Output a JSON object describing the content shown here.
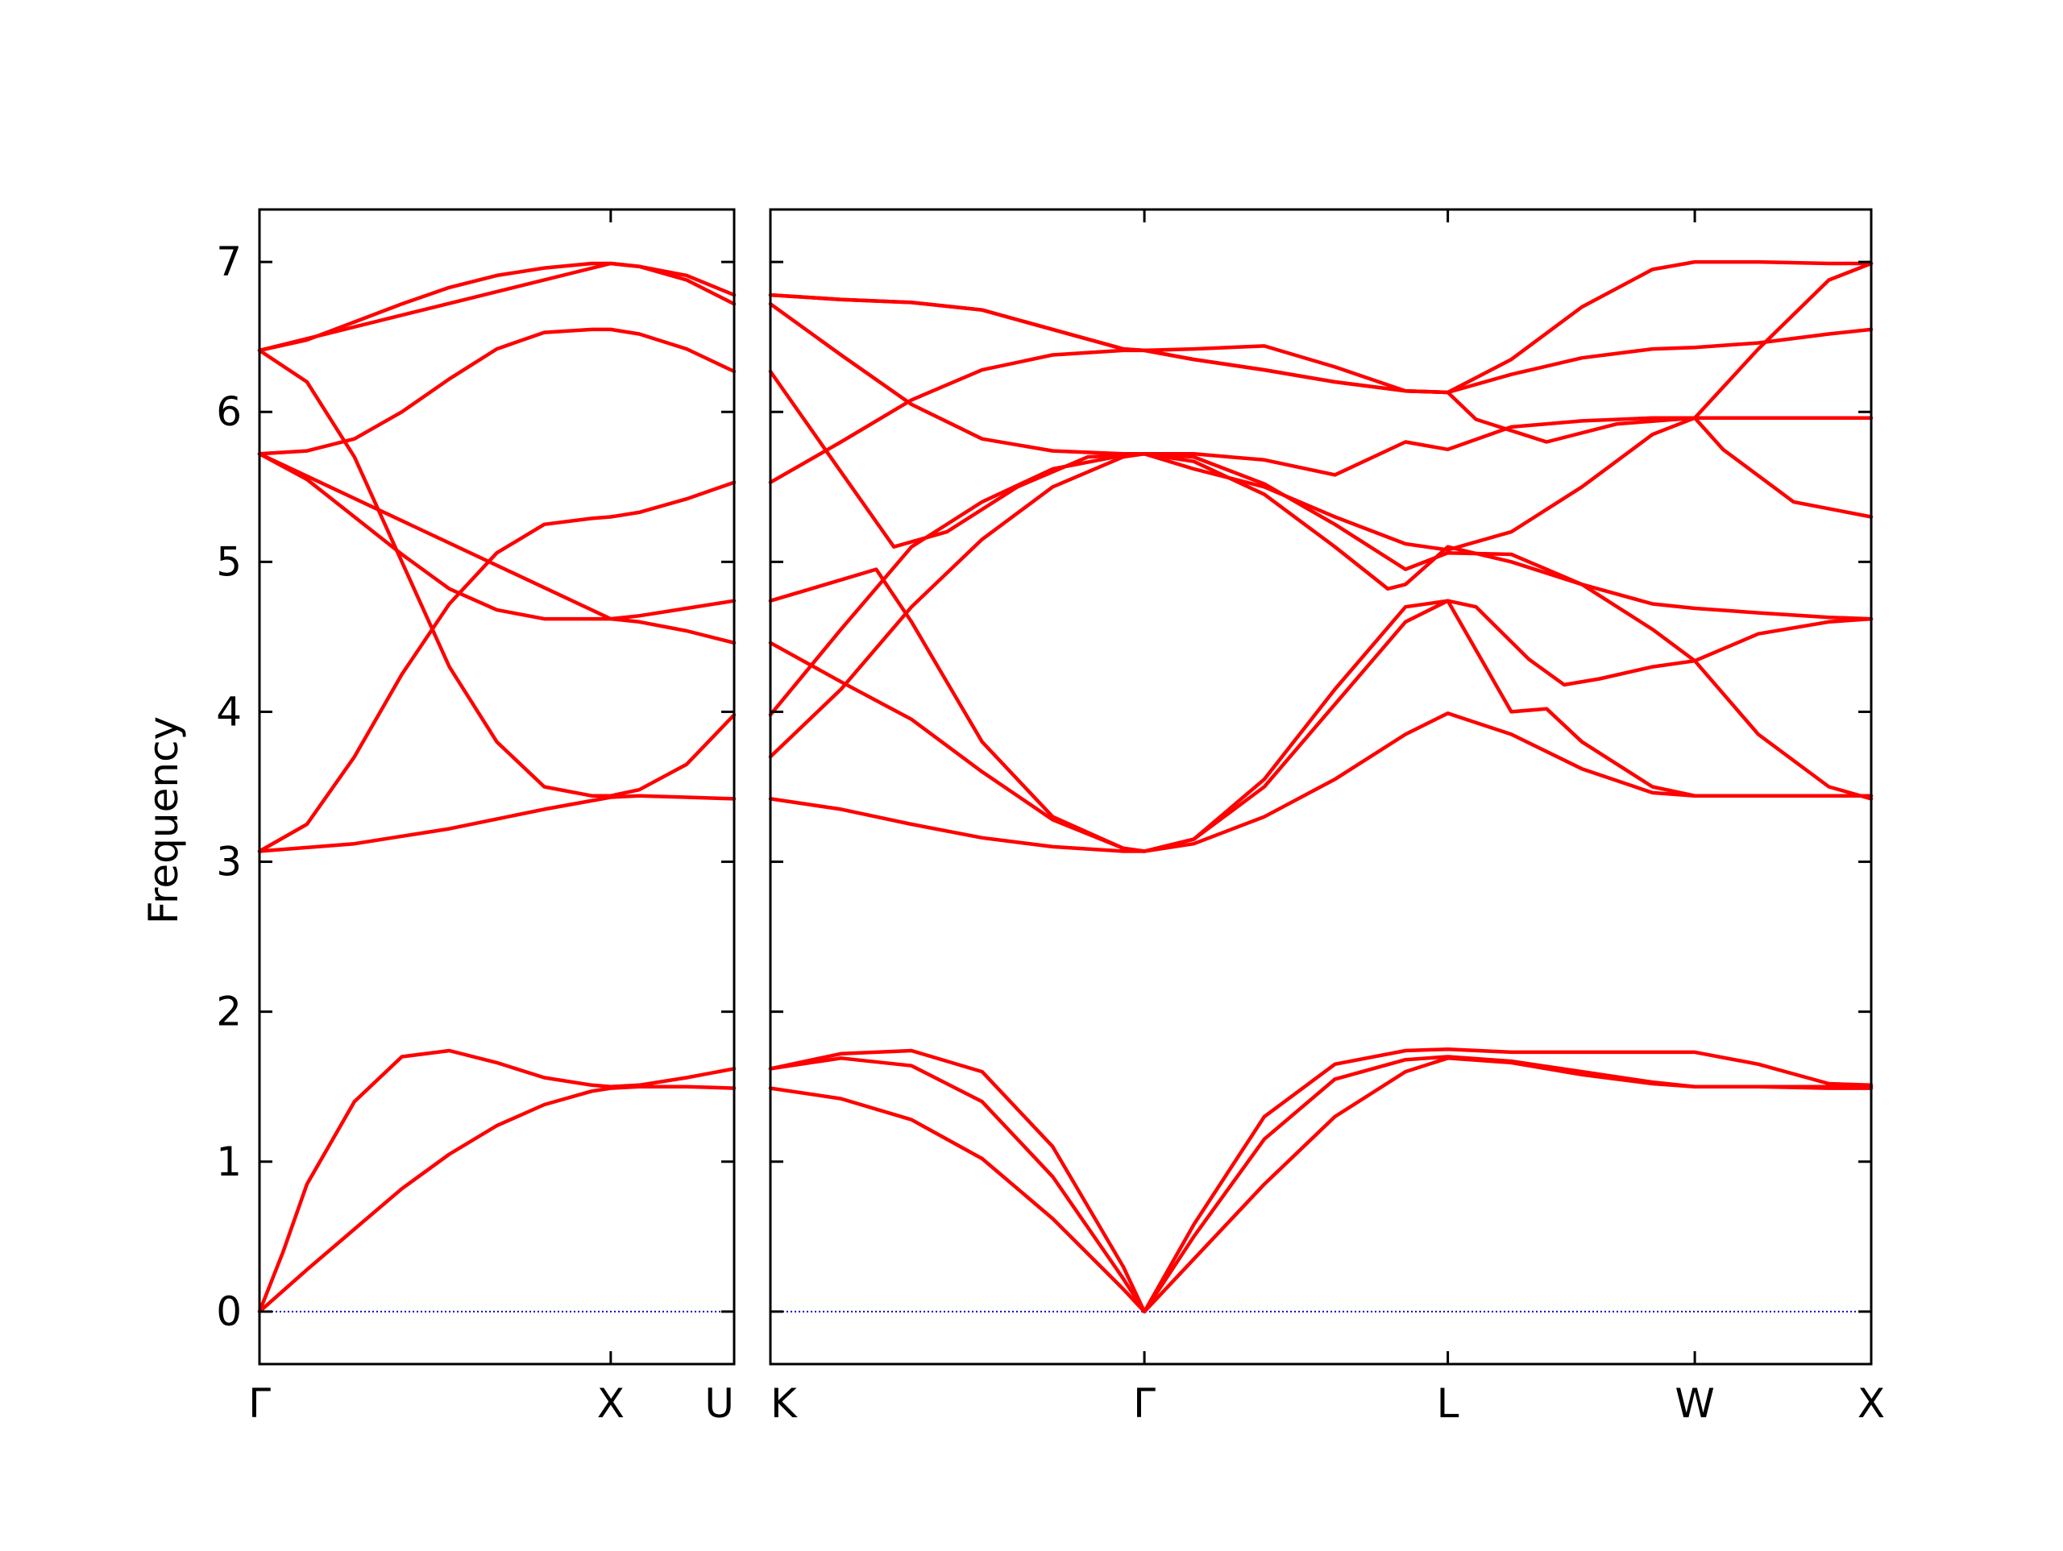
{
  "chart_data": {
    "type": "line",
    "title": "",
    "xlabel": "",
    "ylabel": "Frequency",
    "ylim": [
      -0.35,
      7.35
    ],
    "yticks": [
      0,
      1,
      2,
      3,
      4,
      5,
      6,
      7
    ],
    "grid": false,
    "legend": "none",
    "line_color": "#ff0000",
    "zero_line_color": "#0000cc",
    "panels": [
      {
        "ticks": [
          {
            "label": "Γ",
            "x": 0.0
          },
          {
            "label": "X",
            "x": 0.74
          },
          {
            "label": "U",
            "x": 1.0
          }
        ],
        "xlim": [
          0,
          1
        ],
        "series": [
          {
            "x": [
              0,
              0.1,
              0.2,
              0.3,
              0.4,
              0.5,
              0.6,
              0.7,
              0.74,
              0.8,
              0.9,
              1.0
            ],
            "values": [
              0.0,
              0.28,
              0.55,
              0.82,
              1.05,
              1.24,
              1.38,
              1.47,
              1.49,
              1.5,
              1.5,
              1.49
            ]
          },
          {
            "x": [
              0,
              0.05,
              0.1,
              0.2,
              0.3,
              0.4,
              0.5,
              0.6,
              0.7,
              0.74,
              0.8,
              0.9,
              1.0
            ],
            "values": [
              0.0,
              0.4,
              0.85,
              1.4,
              1.7,
              1.74,
              1.66,
              1.56,
              1.51,
              1.5,
              1.51,
              1.56,
              1.62
            ]
          },
          {
            "x": [
              0,
              0.2,
              0.4,
              0.6,
              0.74,
              0.8,
              0.9,
              1.0
            ],
            "values": [
              3.07,
              3.12,
              3.22,
              3.35,
              3.43,
              3.44,
              3.43,
              3.42
            ]
          },
          {
            "x": [
              0,
              0.1,
              0.2,
              0.3,
              0.4,
              0.5,
              0.6,
              0.7,
              0.74,
              0.8,
              0.9,
              1.0
            ],
            "values": [
              3.07,
              3.25,
              3.7,
              4.25,
              4.72,
              5.06,
              5.25,
              5.29,
              5.3,
              5.33,
              5.42,
              5.53
            ]
          },
          {
            "x": [
              0,
              0.1,
              0.2,
              0.3,
              0.4,
              0.5,
              0.6,
              0.7,
              0.74,
              0.8,
              0.9,
              1.0
            ],
            "values": [
              6.41,
              6.2,
              5.7,
              5.0,
              4.3,
              3.8,
              3.5,
              3.44,
              3.44,
              3.48,
              3.65,
              3.98
            ]
          },
          {
            "x": [
              0,
              0.1,
              0.2,
              0.3,
              0.4,
              0.5,
              0.6,
              0.74,
              0.8,
              0.9,
              1.0
            ],
            "values": [
              5.72,
              5.55,
              5.3,
              5.05,
              4.82,
              4.68,
              4.62,
              4.62,
              4.6,
              4.54,
              4.46
            ]
          },
          {
            "x": [
              0,
              0.74,
              0.8,
              0.9,
              1.0
            ],
            "values": [
              5.72,
              4.62,
              4.64,
              4.69,
              4.74
            ]
          },
          {
            "x": [
              0,
              0.1,
              0.2,
              0.3,
              0.4,
              0.5,
              0.6,
              0.7,
              0.74,
              0.8,
              0.9,
              1.0
            ],
            "values": [
              5.72,
              5.74,
              5.82,
              6.0,
              6.22,
              6.42,
              6.53,
              6.55,
              6.55,
              6.52,
              6.42,
              6.27
            ]
          },
          {
            "x": [
              0,
              0.1,
              0.2,
              0.3,
              0.4,
              0.5,
              0.6,
              0.7,
              0.74,
              0.8,
              0.9,
              1.0
            ],
            "values": [
              6.41,
              6.48,
              6.6,
              6.72,
              6.83,
              6.91,
              6.96,
              6.99,
              6.99,
              6.97,
              6.88,
              6.72
            ]
          },
          {
            "x": [
              0,
              0.74,
              0.8,
              0.9,
              1.0
            ],
            "values": [
              6.41,
              6.99,
              6.97,
              6.91,
              6.78
            ]
          }
        ]
      },
      {
        "ticks": [
          {
            "label": "K",
            "x": 0.0
          },
          {
            "label": "Γ",
            "x": 1.06
          },
          {
            "label": "L",
            "x": 1.92
          },
          {
            "label": "W",
            "x": 2.62
          },
          {
            "label": "X",
            "x": 3.12
          }
        ],
        "xlim": [
          0,
          3.12
        ],
        "series": [
          {
            "x": [
              0,
              0.2,
              0.4,
              0.6,
              0.8,
              1.0,
              1.06,
              1.2,
              1.4,
              1.6,
              1.8,
              1.92,
              2.1,
              2.3,
              2.5,
              2.62,
              2.8,
              3.0,
              3.12
            ],
            "values": [
              1.49,
              1.42,
              1.28,
              1.02,
              0.62,
              0.15,
              0.0,
              0.35,
              0.85,
              1.3,
              1.6,
              1.69,
              1.66,
              1.58,
              1.52,
              1.5,
              1.5,
              1.49,
              1.49
            ]
          },
          {
            "x": [
              0,
              0.2,
              0.4,
              0.6,
              0.8,
              1.0,
              1.06,
              1.2,
              1.4,
              1.6,
              1.8,
              1.92,
              2.1,
              2.3,
              2.5,
              2.62,
              2.8,
              3.0,
              3.12
            ],
            "values": [
              1.62,
              1.69,
              1.64,
              1.4,
              0.9,
              0.22,
              0.0,
              0.5,
              1.15,
              1.55,
              1.68,
              1.7,
              1.67,
              1.6,
              1.53,
              1.5,
              1.5,
              1.5,
              1.5
            ]
          },
          {
            "x": [
              0,
              0.2,
              0.4,
              0.6,
              0.8,
              1.0,
              1.06,
              1.2,
              1.4,
              1.6,
              1.8,
              1.92,
              2.1,
              2.3,
              2.5,
              2.62,
              2.8,
              3.0,
              3.12
            ],
            "values": [
              1.62,
              1.72,
              1.74,
              1.6,
              1.1,
              0.3,
              0.0,
              0.58,
              1.3,
              1.65,
              1.74,
              1.75,
              1.73,
              1.73,
              1.73,
              1.73,
              1.65,
              1.52,
              1.51
            ]
          },
          {
            "x": [
              0,
              0.2,
              0.4,
              0.6,
              0.8,
              1.0,
              1.06,
              1.2,
              1.4,
              1.6,
              1.8,
              1.92,
              2.1,
              2.3,
              2.5,
              2.62,
              2.8,
              3.0,
              3.12
            ],
            "values": [
              3.42,
              3.35,
              3.25,
              3.16,
              3.1,
              3.07,
              3.07,
              3.12,
              3.3,
              3.55,
              3.85,
              3.99,
              3.85,
              3.62,
              3.46,
              3.44,
              3.44,
              3.44,
              3.44
            ]
          },
          {
            "x": [
              0,
              0.2,
              0.4,
              0.6,
              0.8,
              1.0,
              1.06,
              1.2,
              1.4,
              1.6,
              1.8,
              1.92,
              2.0,
              2.15,
              2.25,
              2.35,
              2.5,
              2.62,
              2.8,
              3.0,
              3.12
            ],
            "values": [
              4.46,
              4.2,
              3.95,
              3.6,
              3.28,
              3.09,
              3.07,
              3.15,
              3.5,
              4.05,
              4.6,
              4.74,
              4.7,
              4.35,
              4.18,
              4.22,
              4.3,
              4.34,
              4.52,
              4.6,
              4.62
            ]
          },
          {
            "x": [
              0,
              0.2,
              0.3,
              0.4,
              0.6,
              0.8,
              1.0,
              1.06,
              1.2,
              1.4,
              1.6,
              1.8,
              1.92,
              2.1,
              2.2,
              2.3,
              2.5,
              2.62,
              2.8,
              3.0,
              3.12
            ],
            "values": [
              4.74,
              4.88,
              4.95,
              4.6,
              3.8,
              3.3,
              3.09,
              3.07,
              3.15,
              3.55,
              4.15,
              4.7,
              4.74,
              4.0,
              4.02,
              3.8,
              3.5,
              3.44,
              3.44,
              3.44,
              3.44
            ]
          },
          {
            "x": [
              0,
              0.2,
              0.4,
              0.6,
              0.8,
              1.0,
              1.06,
              1.2,
              1.4,
              1.6,
              1.8,
              1.92,
              2.1,
              2.3,
              2.5,
              2.62,
              2.8,
              3.0,
              3.12
            ],
            "values": [
              3.7,
              4.15,
              4.7,
              5.15,
              5.5,
              5.7,
              5.72,
              5.7,
              5.52,
              5.25,
              4.95,
              5.06,
              5.05,
              4.85,
              4.55,
              4.34,
              3.85,
              3.5,
              3.42
            ]
          },
          {
            "x": [
              0,
              0.2,
              0.4,
              0.6,
              0.8,
              1.0,
              1.06,
              1.2,
              1.4,
              1.6,
              1.75,
              1.8,
              1.92,
              2.1,
              2.3,
              2.5,
              2.62,
              2.8,
              3.0,
              3.12
            ],
            "values": [
              3.98,
              4.55,
              5.1,
              5.4,
              5.62,
              5.71,
              5.72,
              5.67,
              5.45,
              5.1,
              4.82,
              4.85,
              5.1,
              5.0,
              4.85,
              4.72,
              4.69,
              4.66,
              4.63,
              4.62
            ]
          },
          {
            "x": [
              0,
              0.2,
              0.35,
              0.5,
              0.7,
              0.9,
              1.06,
              1.2,
              1.4,
              1.6,
              1.8,
              1.92,
              2.1,
              2.3,
              2.5,
              2.62,
              2.7,
              2.9,
              3.12
            ],
            "values": [
              6.27,
              5.6,
              5.1,
              5.2,
              5.5,
              5.7,
              5.72,
              5.62,
              5.5,
              5.3,
              5.12,
              5.08,
              5.2,
              5.5,
              5.85,
              5.96,
              5.75,
              5.4,
              5.3
            ]
          },
          {
            "x": [
              0,
              0.2,
              0.4,
              0.6,
              0.8,
              1.0,
              1.06,
              1.2,
              1.4,
              1.6,
              1.8,
              1.92,
              2.0,
              2.2,
              2.4,
              2.62,
              3.12
            ],
            "values": [
              5.53,
              5.8,
              6.08,
              6.28,
              6.38,
              6.41,
              6.41,
              6.35,
              6.28,
              6.2,
              6.14,
              6.13,
              5.95,
              5.8,
              5.92,
              5.96,
              5.96
            ]
          },
          {
            "x": [
              0,
              0.2,
              0.4,
              0.6,
              0.8,
              1.0,
              1.06,
              1.2,
              1.4,
              1.6,
              1.8,
              1.92,
              2.1,
              2.3,
              2.5,
              2.62,
              2.8,
              3.0,
              3.12
            ],
            "values": [
              6.78,
              6.75,
              6.73,
              6.68,
              6.55,
              6.42,
              6.41,
              6.35,
              6.28,
              6.2,
              6.14,
              6.13,
              6.25,
              6.36,
              6.42,
              6.43,
              6.46,
              6.52,
              6.55
            ]
          },
          {
            "x": [
              0,
              0.2,
              0.4,
              0.6,
              0.8,
              1.0,
              1.06,
              1.2,
              1.4,
              1.6,
              1.8,
              1.92,
              2.1,
              2.3,
              2.5,
              2.62,
              2.8,
              3.0,
              3.12
            ],
            "values": [
              6.72,
              6.38,
              6.05,
              5.82,
              5.74,
              5.72,
              5.72,
              5.72,
              5.68,
              5.58,
              5.8,
              5.75,
              5.9,
              5.94,
              5.96,
              5.96,
              6.42,
              6.88,
              6.99
            ]
          },
          {
            "x": [
              0,
              0.2,
              0.4,
              0.6,
              0.8,
              1.0,
              1.06,
              1.2,
              1.4,
              1.6,
              1.8,
              1.92,
              2.1,
              2.3,
              2.5,
              2.62,
              2.8,
              3.0,
              3.12
            ],
            "values": [
              6.78,
              6.75,
              6.73,
              6.68,
              6.55,
              6.42,
              6.41,
              6.42,
              6.44,
              6.3,
              6.14,
              6.13,
              6.35,
              6.7,
              6.95,
              7.0,
              7.0,
              6.99,
              6.99
            ]
          }
        ]
      }
    ]
  }
}
